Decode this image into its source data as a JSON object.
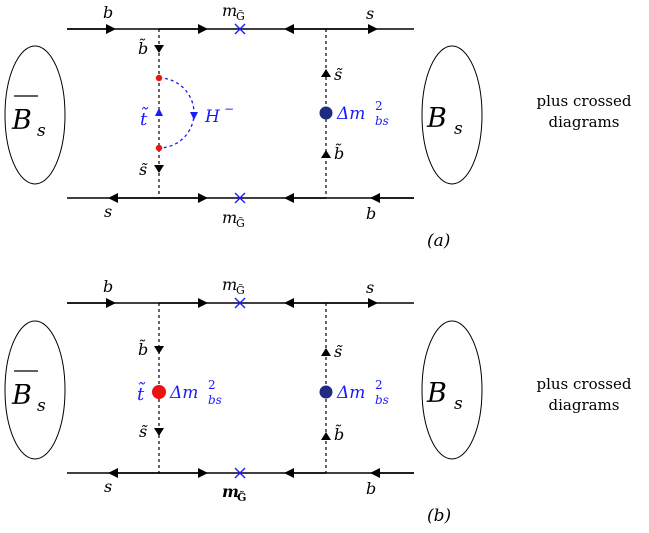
{
  "diagrams": [
    {
      "panel_label": "(a)",
      "meson_left": {
        "base": "B",
        "sub": "s"
      },
      "meson_right": {
        "base": "B",
        "sub": "s"
      },
      "top_line": {
        "left": "b",
        "right": "s",
        "mass": "m",
        "mass_sub": "G̃"
      },
      "bottom_line": {
        "left": "s",
        "right": "b",
        "mass": "m",
        "mass_sub": "G̃"
      },
      "left_vertical": {
        "top": "b̃",
        "mid": "t̃",
        "bottom": "s̃"
      },
      "loop_label": {
        "base": "H",
        "sup": "−"
      },
      "right_vertical": {
        "top": "s̃",
        "bottom": "b̃"
      },
      "insertion_right": {
        "delta": "Δm",
        "sup": "2",
        "sub": "bs"
      },
      "note": [
        "plus crossed",
        "diagrams"
      ]
    },
    {
      "panel_label": "(b)",
      "meson_left": {
        "base": "B",
        "sub": "s"
      },
      "meson_right": {
        "base": "B",
        "sub": "s"
      },
      "top_line": {
        "left": "b",
        "right": "s",
        "mass": "m",
        "mass_sub": "G̃"
      },
      "bottom_line": {
        "left": "s",
        "right": "b",
        "mass": "m",
        "mass_sub": "G̃"
      },
      "left_vertical": {
        "top": "b̃",
        "mid": "t̃",
        "bottom": "s̃"
      },
      "insertion_left": {
        "delta": "Δm",
        "sup": "2",
        "sub": "bs"
      },
      "right_vertical": {
        "top": "s̃",
        "bottom": "b̃"
      },
      "insertion_right": {
        "delta": "Δm",
        "sup": "2",
        "sub": "bs"
      },
      "note": [
        "plus crossed",
        "diagrams"
      ]
    }
  ],
  "colors": {
    "line": "#000000",
    "gluino_cross": "#1a1aff",
    "label_blue": "#1a1aff",
    "dot_red": "#ee1111",
    "dot_navy": "#1f2a80",
    "higgs_loop": "#1a1aff"
  }
}
